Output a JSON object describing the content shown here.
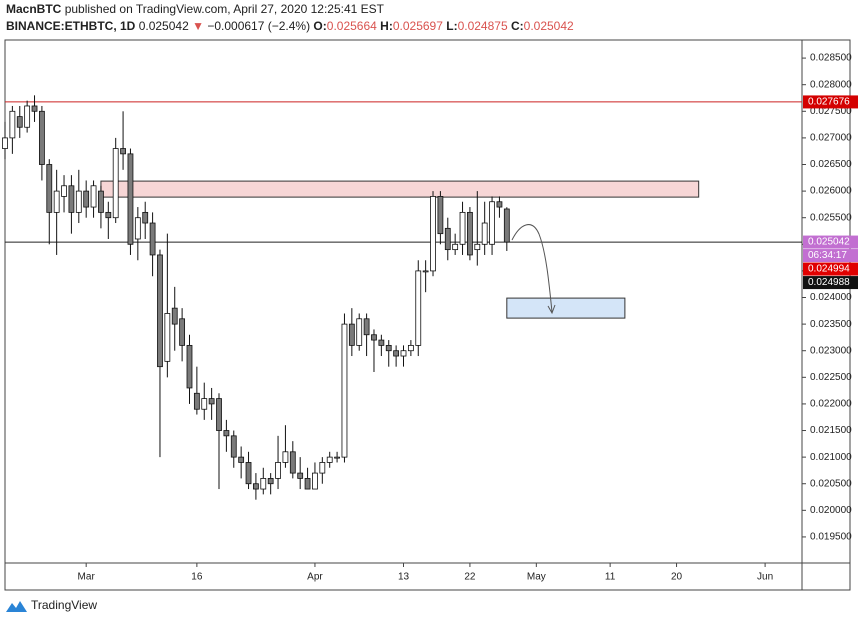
{
  "header": {
    "author": "MacnBTC",
    "published": "published on TradingView.com, April 27, 2020 12:25:41 EST",
    "symbol": "BINANCE:ETHBTC, 1D",
    "last": "0.025042",
    "arrow": "▼",
    "change": "−0.000617 (−2.4%)",
    "o_label": "O:",
    "o": "0.025664",
    "h_label": "H:",
    "h": "0.025697",
    "l_label": "L:",
    "l": "0.024875",
    "c_label": "C:",
    "c": "0.025042"
  },
  "footer": {
    "brand": "TradingView"
  },
  "chart_data": {
    "type": "candlestick",
    "x": [
      "2020-02-19",
      "2020-02-20",
      "2020-02-21",
      "2020-02-22",
      "2020-02-23",
      "2020-02-24",
      "2020-02-25",
      "2020-02-26",
      "2020-02-27",
      "2020-02-28",
      "2020-02-29",
      "2020-03-01",
      "2020-03-02",
      "2020-03-03",
      "2020-03-04",
      "2020-03-05",
      "2020-03-06",
      "2020-03-07",
      "2020-03-08",
      "2020-03-09",
      "2020-03-10",
      "2020-03-11",
      "2020-03-12",
      "2020-03-13",
      "2020-03-14",
      "2020-03-15",
      "2020-03-16",
      "2020-03-17",
      "2020-03-18",
      "2020-03-19",
      "2020-03-20",
      "2020-03-21",
      "2020-03-22",
      "2020-03-23",
      "2020-03-24",
      "2020-03-25",
      "2020-03-26",
      "2020-03-27",
      "2020-03-28",
      "2020-03-29",
      "2020-03-30",
      "2020-03-31",
      "2020-04-01",
      "2020-04-02",
      "2020-04-03",
      "2020-04-04",
      "2020-04-05",
      "2020-04-06",
      "2020-04-07",
      "2020-04-08",
      "2020-04-09",
      "2020-04-10",
      "2020-04-11",
      "2020-04-12",
      "2020-04-13",
      "2020-04-14",
      "2020-04-15",
      "2020-04-16",
      "2020-04-17",
      "2020-04-18",
      "2020-04-19",
      "2020-04-20",
      "2020-04-21",
      "2020-04-22",
      "2020-04-23",
      "2020-04-24",
      "2020-04-25",
      "2020-04-26",
      "2020-04-27"
    ],
    "open": [
      0.0268,
      0.027,
      0.0274,
      0.0272,
      0.0276,
      0.0275,
      0.0265,
      0.0256,
      0.0259,
      0.0261,
      0.0256,
      0.026,
      0.0257,
      0.026,
      0.0256,
      0.0255,
      0.0268,
      0.0267,
      0.0251,
      0.0256,
      0.0254,
      0.0248,
      0.0228,
      0.0238,
      0.0236,
      0.0231,
      0.0222,
      0.0219,
      0.0221,
      0.0221,
      0.0215,
      0.0214,
      0.021,
      0.0209,
      0.0205,
      0.0204,
      0.0206,
      0.0206,
      0.0209,
      0.0211,
      0.0207,
      0.0206,
      0.0204,
      0.0207,
      0.0209,
      0.021,
      0.021,
      0.0235,
      0.0231,
      0.0236,
      0.0233,
      0.0232,
      0.0231,
      0.023,
      0.0229,
      0.023,
      0.0231,
      0.0245,
      0.0245,
      0.0259,
      0.0253,
      0.0249,
      0.025,
      0.0256,
      0.0249,
      0.025,
      0.025,
      0.0258,
      0.025664
    ],
    "high": [
      0.0273,
      0.0276,
      0.0276,
      0.0277,
      0.0278,
      0.0276,
      0.0266,
      0.0264,
      0.0263,
      0.0263,
      0.0264,
      0.0262,
      0.0262,
      0.0261,
      0.0258,
      0.027,
      0.0275,
      0.0268,
      0.0257,
      0.0258,
      0.0256,
      0.0249,
      0.0252,
      0.0242,
      0.0238,
      0.0233,
      0.0227,
      0.0224,
      0.0223,
      0.0222,
      0.0217,
      0.0215,
      0.0212,
      0.0211,
      0.0207,
      0.0208,
      0.0207,
      0.0214,
      0.0216,
      0.0213,
      0.021,
      0.0208,
      0.0209,
      0.021,
      0.0211,
      0.0211,
      0.0237,
      0.0238,
      0.0237,
      0.0237,
      0.0234,
      0.0233,
      0.0232,
      0.0231,
      0.0231,
      0.0232,
      0.0247,
      0.0247,
      0.026,
      0.026,
      0.0255,
      0.0252,
      0.0258,
      0.0257,
      0.026,
      0.0258,
      0.0259,
      0.0259,
      0.025697
    ],
    "low": [
      0.0266,
      0.0267,
      0.027,
      0.0271,
      0.0273,
      0.0262,
      0.025,
      0.0248,
      0.0256,
      0.0252,
      0.0254,
      0.0255,
      0.0255,
      0.0253,
      0.0251,
      0.0254,
      0.0264,
      0.0248,
      0.0247,
      0.0251,
      0.0244,
      0.021,
      0.0225,
      0.023,
      0.0228,
      0.022,
      0.0218,
      0.0217,
      0.0217,
      0.0204,
      0.0211,
      0.0208,
      0.0206,
      0.0204,
      0.0202,
      0.0203,
      0.0203,
      0.0204,
      0.0208,
      0.0206,
      0.0204,
      0.0204,
      0.0204,
      0.0205,
      0.0208,
      0.0209,
      0.0209,
      0.0229,
      0.023,
      0.0229,
      0.0226,
      0.0229,
      0.0227,
      0.0227,
      0.0227,
      0.0229,
      0.0229,
      0.0241,
      0.0244,
      0.025,
      0.0247,
      0.0248,
      0.0248,
      0.0247,
      0.0246,
      0.0248,
      0.0248,
      0.0255,
      0.024875
    ],
    "close": [
      0.027,
      0.0275,
      0.0272,
      0.0276,
      0.0275,
      0.0265,
      0.0256,
      0.026,
      0.0261,
      0.0256,
      0.026,
      0.0257,
      0.0261,
      0.0256,
      0.0255,
      0.0268,
      0.0267,
      0.025,
      0.0255,
      0.0254,
      0.0248,
      0.0227,
      0.0237,
      0.0235,
      0.0231,
      0.0223,
      0.0219,
      0.0221,
      0.022,
      0.0215,
      0.0214,
      0.021,
      0.0209,
      0.0205,
      0.0204,
      0.0206,
      0.0205,
      0.0209,
      0.0211,
      0.0207,
      0.0206,
      0.0204,
      0.0207,
      0.0209,
      0.021,
      0.021,
      0.0235,
      0.0231,
      0.0236,
      0.0233,
      0.0232,
      0.0231,
      0.023,
      0.0229,
      0.023,
      0.0231,
      0.0245,
      0.0245,
      0.0259,
      0.0252,
      0.0249,
      0.025,
      0.0256,
      0.0248,
      0.025,
      0.0254,
      0.0258,
      0.0257,
      0.025042
    ],
    "up_color": "#ffffff",
    "down_color": "#7a7a7a",
    "border_color": "#111111",
    "xlim": [
      "2020-02-19",
      "2020-06-06"
    ],
    "ylim": [
      0.01901,
      0.02884
    ],
    "xticks": [
      {
        "value": "2020-03-01",
        "label": "Mar"
      },
      {
        "value": "2020-03-16",
        "label": "16"
      },
      {
        "value": "2020-04-01",
        "label": "Apr"
      },
      {
        "value": "2020-04-13",
        "label": "13"
      },
      {
        "value": "2020-04-22",
        "label": "22"
      },
      {
        "value": "2020-05-01",
        "label": "May"
      },
      {
        "value": "2020-05-11",
        "label": "11"
      },
      {
        "value": "2020-05-20",
        "label": "20"
      },
      {
        "value": "2020-06-01",
        "label": "Jun"
      }
    ],
    "yticks": [
      {
        "value": 0.0195,
        "label": "0.019500"
      },
      {
        "value": 0.02,
        "label": "0.020000"
      },
      {
        "value": 0.0205,
        "label": "0.020500"
      },
      {
        "value": 0.021,
        "label": "0.021000"
      },
      {
        "value": 0.0215,
        "label": "0.021500"
      },
      {
        "value": 0.022,
        "label": "0.022000"
      },
      {
        "value": 0.0225,
        "label": "0.022500"
      },
      {
        "value": 0.023,
        "label": "0.023000"
      },
      {
        "value": 0.0235,
        "label": "0.023500"
      },
      {
        "value": 0.024,
        "label": "0.024000"
      },
      {
        "value": 0.0245,
        "label": "0.024500"
      },
      {
        "value": 0.025,
        "label": "0.025000"
      },
      {
        "value": 0.0255,
        "label": "0.025500"
      },
      {
        "value": 0.026,
        "label": "0.026000"
      },
      {
        "value": 0.0265,
        "label": "0.026500"
      },
      {
        "value": 0.027,
        "label": "0.027000"
      },
      {
        "value": 0.0275,
        "label": "0.027500"
      },
      {
        "value": 0.028,
        "label": "0.028000"
      },
      {
        "value": 0.0285,
        "label": "0.028500"
      }
    ],
    "price_lines": [
      {
        "value": 0.027676,
        "color": "#cc2222"
      },
      {
        "value": 0.025042,
        "color": "#222222"
      }
    ],
    "side_tags": [
      {
        "value": 0.027676,
        "label": "0.027676",
        "color": "#d40000"
      },
      {
        "value": 0.025042,
        "label": "0.025042",
        "color": "#c26fd1"
      },
      {
        "label": "06:34:17",
        "color": "#c26fd1"
      },
      {
        "value": 0.024994,
        "label": "0.024994",
        "color": "#e00000"
      },
      {
        "value": 0.024988,
        "label": "0.024988",
        "color": "#111111"
      }
    ],
    "zones": [
      {
        "x": [
          "2020-03-03",
          "2020-05-23"
        ],
        "y": [
          0.025887,
          0.026188
        ],
        "color": "#f7d6d6",
        "stroke": "#333333"
      },
      {
        "x": [
          "2020-04-27",
          "2020-05-13"
        ],
        "y": [
          0.023613,
          0.023989
        ],
        "color": "#d4e5f8",
        "stroke": "#333333"
      }
    ]
  }
}
